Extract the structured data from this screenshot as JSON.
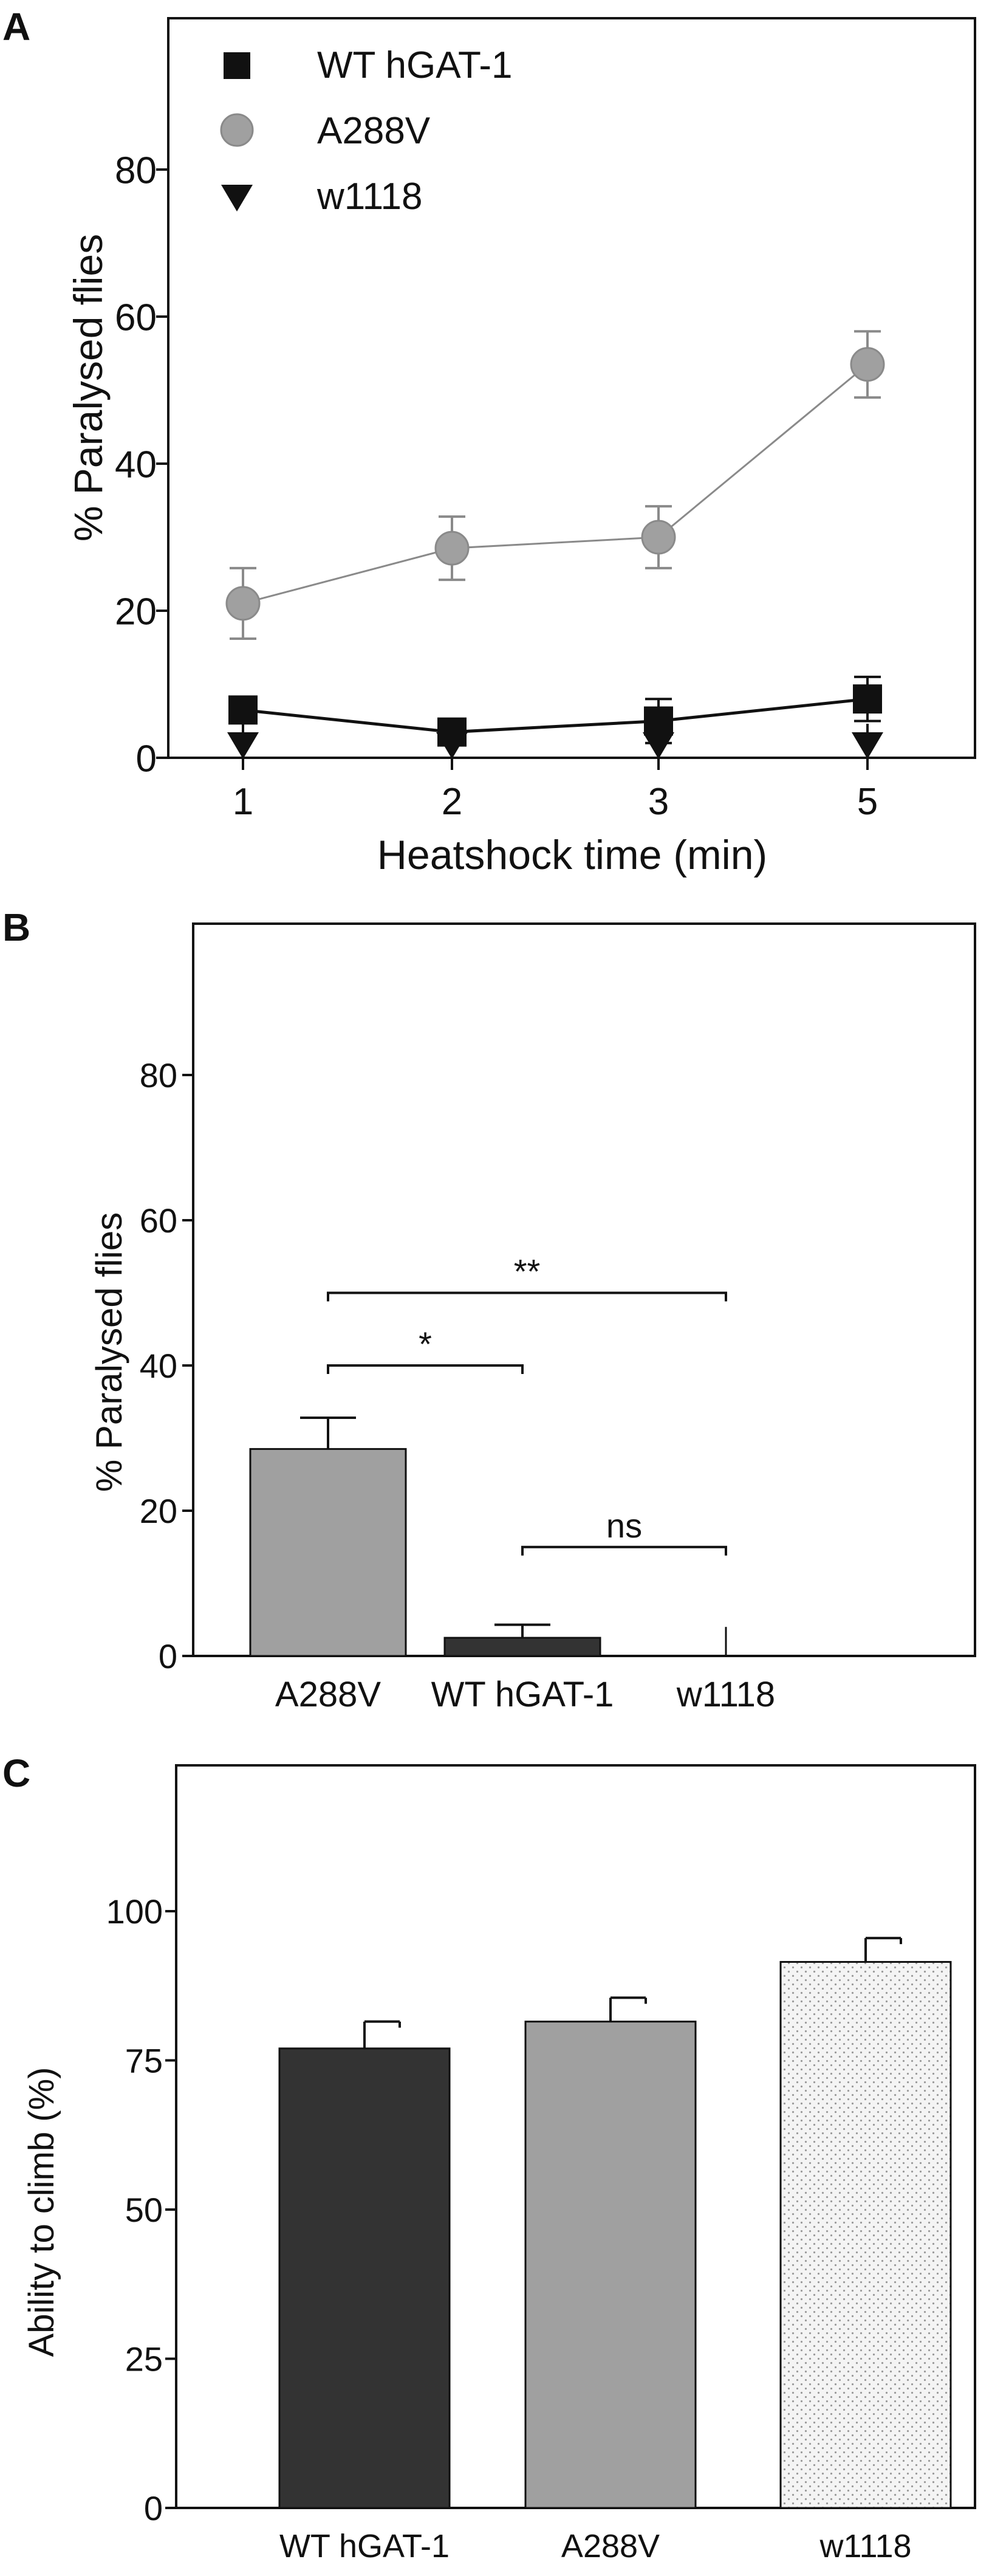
{
  "panels": [
    {
      "letter": "A"
    },
    {
      "letter": "B"
    },
    {
      "letter": "C"
    }
  ],
  "colors": {
    "black": "#111111",
    "dark_bar": "#333333",
    "gray": "#a0a0a0",
    "gray_line": "#8a8a8a",
    "dotted_fill": "#f4f4f4",
    "dot": "#9a9a9a"
  },
  "chart_data": [
    {
      "type": "line",
      "panel": "A",
      "xlabel": "Heatshock time (min)",
      "ylabel": "% Paralysed flies",
      "categories": [
        "1",
        "2",
        "3",
        "5"
      ],
      "yticks": [
        0,
        20,
        40,
        60,
        80
      ],
      "ylim": [
        0,
        100
      ],
      "legend_position": "top-left",
      "series": [
        {
          "name": "WT hGAT-1",
          "marker": "square",
          "color": "#111111",
          "values": [
            6.5,
            3.5,
            5,
            8
          ],
          "errors": [
            0,
            1.5,
            3,
            3
          ]
        },
        {
          "name": "A288V",
          "marker": "circle",
          "color": "#a0a0a0",
          "values": [
            21,
            28.5,
            30,
            53.5
          ],
          "errors": [
            4.8,
            4.3,
            4.2,
            4.5
          ]
        },
        {
          "name": "w1118",
          "marker": "triangle-down",
          "color": "#111111",
          "values": [
            0,
            0,
            0,
            0
          ],
          "errors": [
            0,
            0,
            0,
            0
          ]
        }
      ]
    },
    {
      "type": "bar",
      "panel": "B",
      "xlabel": "",
      "ylabel": "% Paralysed flies",
      "categories": [
        "A288V",
        "WT hGAT-1",
        "w1118"
      ],
      "values": [
        28.5,
        2.5,
        0
      ],
      "errors": [
        4.3,
        1.8,
        0
      ],
      "bar_colors": [
        "#a0a0a0",
        "#333333",
        "#ffffff"
      ],
      "yticks": [
        0,
        20,
        40,
        60,
        80
      ],
      "ylim": [
        0,
        100
      ],
      "significance": [
        {
          "from": 0,
          "to": 2,
          "label": "**",
          "y": 50
        },
        {
          "from": 0,
          "to": 1,
          "label": "*",
          "y": 40
        },
        {
          "from": 1,
          "to": 2,
          "label": "ns",
          "y": 15
        }
      ]
    },
    {
      "type": "bar",
      "panel": "C",
      "xlabel": "",
      "ylabel": "Ability to climb (%)",
      "categories": [
        "WT hGAT-1",
        "A288V",
        "w1118"
      ],
      "values": [
        77,
        81.5,
        91.5
      ],
      "errors": [
        4.5,
        4,
        4
      ],
      "bar_fills": [
        "dark",
        "gray",
        "dotted"
      ],
      "yticks": [
        0,
        25,
        50,
        75,
        100
      ],
      "ylim": [
        0,
        125
      ]
    }
  ]
}
